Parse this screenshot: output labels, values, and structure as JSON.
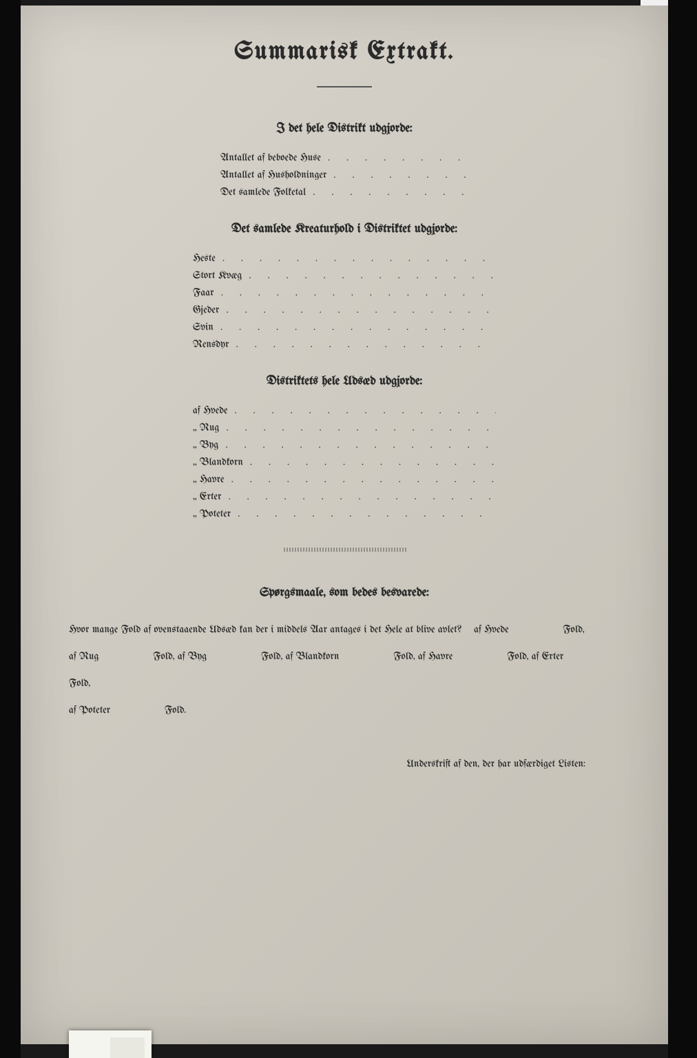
{
  "title": "Summarisk Extrakt.",
  "section1": {
    "heading": "I det hele Distrikt udgjorde:",
    "items": [
      "Antallet af beboede Huse",
      "Antallet af Husholdninger",
      "Det samlede Folketal"
    ]
  },
  "section2": {
    "heading": "Det samlede Kreaturhold i Distriktet udgjorde:",
    "items": [
      "Heste",
      "Stort Kvæg",
      "Faar",
      "Gjeder",
      "Svin",
      "Rensdyr"
    ]
  },
  "section3": {
    "heading": "Distriktets hele Udsæd udgjorde:",
    "items": [
      "af Hvede",
      "„ Rug",
      "„ Byg",
      "„ Blandkorn",
      "„ Havre",
      "„ Erter",
      "„ Poteter"
    ]
  },
  "questions": {
    "heading": "Spørgsmaale, som bedes besvarede:",
    "line1_a": "Hvor mange Fold af ovenstaaende Udsæd kan der i middels Aar antages i det Hele at blive avlet?",
    "line1_b": "af Hvede",
    "fold": "Fold,",
    "fold_end": "Fold.",
    "parts": [
      "af Rug",
      "Fold, af Byg",
      "Fold, af Blandkorn",
      "Fold, af Havre",
      "Fold, af Erter"
    ],
    "line3": "af Poteter"
  },
  "signature": "Underskrift af den, der har udfærdiget Listen:"
}
